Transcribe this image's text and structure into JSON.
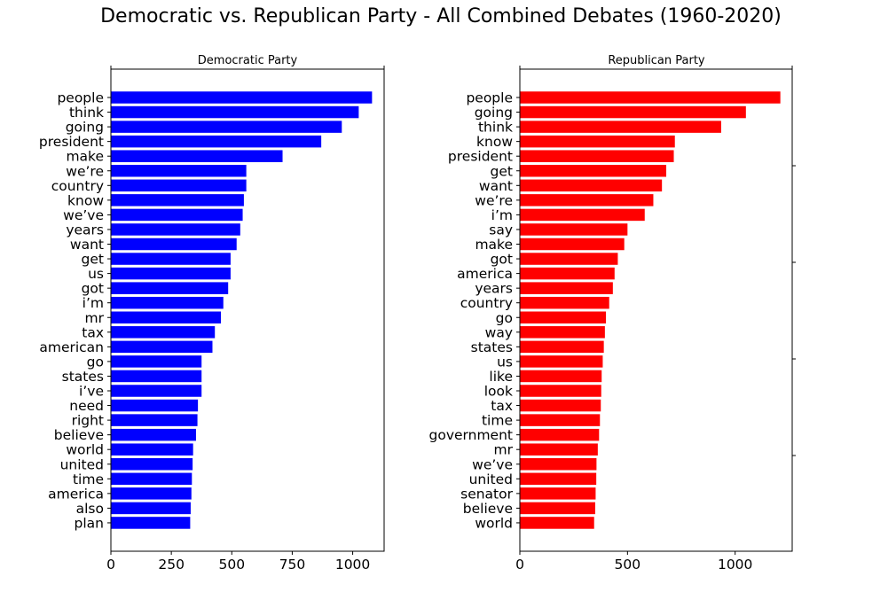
{
  "suptitle": "Democratic vs. Republican Party - All Combined Debates (1960-2020)",
  "chart_data": [
    {
      "type": "bar",
      "orientation": "horizontal",
      "title": "Democratic Party",
      "color": "#0000ff",
      "xlim": [
        0,
        1130
      ],
      "xticks": [
        0,
        250,
        500,
        750,
        1000
      ],
      "categories": [
        "people",
        "think",
        "going",
        "president",
        "make",
        "we’re",
        "country",
        "know",
        "we’ve",
        "years",
        "want",
        "get",
        "us",
        "got",
        "i’m",
        "mr",
        "tax",
        "american",
        "go",
        "states",
        "i’ve",
        "need",
        "right",
        "believe",
        "world",
        "united",
        "time",
        "america",
        "also",
        "plan"
      ],
      "values": [
        1080,
        1025,
        955,
        870,
        710,
        560,
        560,
        550,
        545,
        535,
        520,
        495,
        495,
        485,
        465,
        455,
        430,
        420,
        375,
        375,
        375,
        360,
        358,
        352,
        340,
        338,
        335,
        333,
        330,
        328
      ]
    },
    {
      "type": "bar",
      "orientation": "horizontal",
      "title": "Republican Party",
      "color": "#ff0000",
      "xlim": [
        0,
        1265
      ],
      "xticks": [
        0,
        500,
        1000
      ],
      "categories": [
        "people",
        "going",
        "think",
        "know",
        "president",
        "get",
        "want",
        "we’re",
        "i’m",
        "say",
        "make",
        "got",
        "america",
        "years",
        "country",
        "go",
        "way",
        "states",
        "us",
        "like",
        "look",
        "tax",
        "time",
        "government",
        "mr",
        "we’ve",
        "united",
        "senator",
        "believe",
        "world"
      ],
      "values": [
        1210,
        1050,
        935,
        720,
        715,
        680,
        660,
        620,
        580,
        500,
        485,
        455,
        440,
        432,
        415,
        400,
        395,
        390,
        385,
        380,
        378,
        376,
        372,
        368,
        362,
        356,
        355,
        352,
        350,
        345
      ]
    }
  ]
}
